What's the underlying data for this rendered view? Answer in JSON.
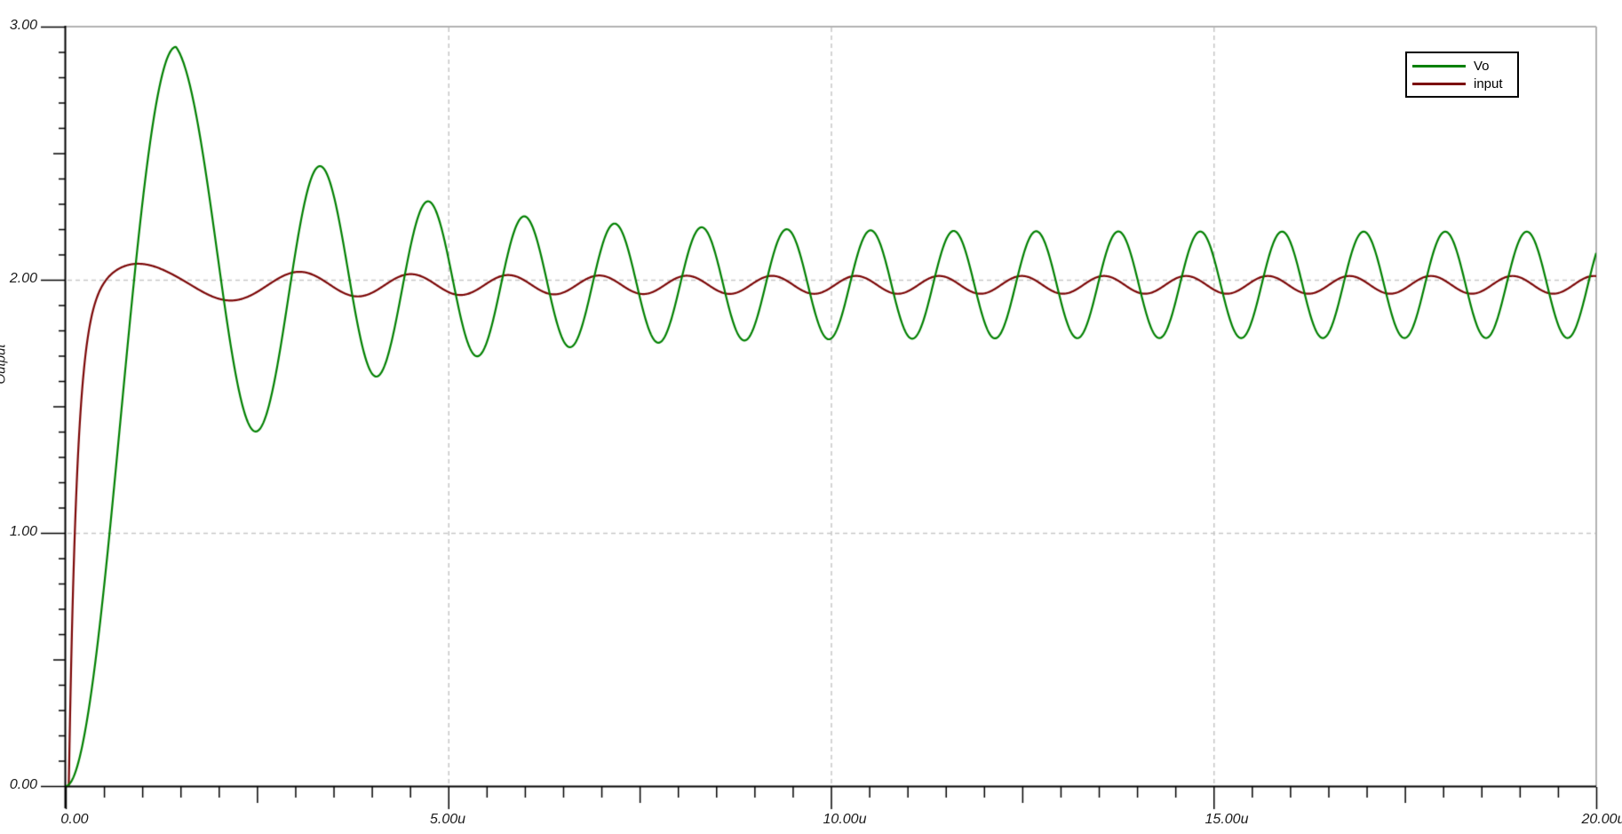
{
  "page": {
    "background_color": "#ffffff",
    "frame_color": "#b2b2b2",
    "grid_color": "#c6c6c6",
    "axis_color": "#000000"
  },
  "chart_data": {
    "type": "line",
    "title": "",
    "x_axis": {
      "label": "",
      "unit": "microseconds",
      "range": [
        0,
        20
      ],
      "major_ticks": [
        0,
        5,
        10,
        15,
        20
      ],
      "tick_labels": [
        "0.00",
        "5.00u",
        "10.00u",
        "15.00u",
        "20.00u"
      ],
      "medium_tick_step": 2.5,
      "minor_tick_step": 0.5
    },
    "y_axis": {
      "label": "Output",
      "range": [
        0,
        3
      ],
      "major_ticks": [
        0,
        1,
        2,
        3
      ],
      "tick_labels": [
        "0.00",
        "1.00",
        "2.00",
        "3.00"
      ],
      "medium_tick_step": 0.5,
      "minor_tick_step": 0.1
    },
    "grid": {
      "style": "dashed",
      "h_lines_at": [
        1.0,
        2.0
      ],
      "v_lines_at": [
        5.0,
        10.0,
        15.0
      ]
    },
    "legend": {
      "position": "top-right",
      "entries": [
        {
          "label": "Vo",
          "color": "#008000"
        },
        {
          "label": "input",
          "color": "#7b0606"
        }
      ]
    },
    "series": [
      {
        "name": "Vo",
        "color": "#008000",
        "description": "Step response rising from 0 with heavy ringing that decays into a sustained ~1.08 us oscillation around 1.98 V",
        "keypoints_t_v": [
          [
            0.0,
            0.0
          ],
          [
            1.44,
            2.91
          ],
          [
            2.45,
            1.4
          ],
          [
            3.35,
            2.41
          ],
          [
            4.03,
            1.62
          ],
          [
            4.76,
            2.3
          ],
          [
            5.2,
            1.69
          ],
          [
            5.99,
            2.24
          ],
          [
            6.45,
            1.73
          ],
          [
            7.15,
            2.21
          ],
          [
            8.29,
            2.2
          ],
          [
            9.39,
            2.2
          ],
          [
            10.5,
            2.19
          ],
          [
            12.7,
            2.19
          ],
          [
            15.8,
            2.19
          ],
          [
            19.0,
            2.19
          ],
          [
            20.0,
            2.1
          ]
        ],
        "steady_state": {
          "mean": 1.98,
          "amplitude": 0.21,
          "period_us": 1.08
        },
        "model": {
          "rise_peak_t": 1.44,
          "rise_peak_v": 2.92,
          "mean0": 1.98,
          "mean_decay": [
            0.03,
            2.5
          ],
          "amp": [
            0.21,
            0.7,
            1.8
          ],
          "freq": [
            0.94,
            0.57,
            2.8
          ]
        }
      },
      {
        "name": "input",
        "color": "#7b0606",
        "description": "Fast ~2 V step with small overshoot and decaying ripple settling to ~2.0 V +/- 0.035 V",
        "keypoints_t_v": [
          [
            0.0,
            0.0
          ],
          [
            0.15,
            1.2
          ],
          [
            0.45,
            1.95
          ],
          [
            1.0,
            2.06
          ],
          [
            2.3,
            1.93
          ],
          [
            3.35,
            2.05
          ],
          [
            4.2,
            1.94
          ],
          [
            7.0,
            2.02
          ],
          [
            10.0,
            2.01
          ],
          [
            15.0,
            2.01
          ],
          [
            20.0,
            2.0
          ]
        ],
        "steady_state": {
          "mean": 1.98,
          "amplitude": 0.035,
          "period_us": 1.08
        },
        "model": {
          "t0": 0.04,
          "tau": 0.11,
          "level": 1.98,
          "ripple": [
            0.035,
            0.09,
            1.8
          ],
          "onset_tau": 0.3,
          "phase_lead_rad": 1.1
        }
      }
    ]
  }
}
